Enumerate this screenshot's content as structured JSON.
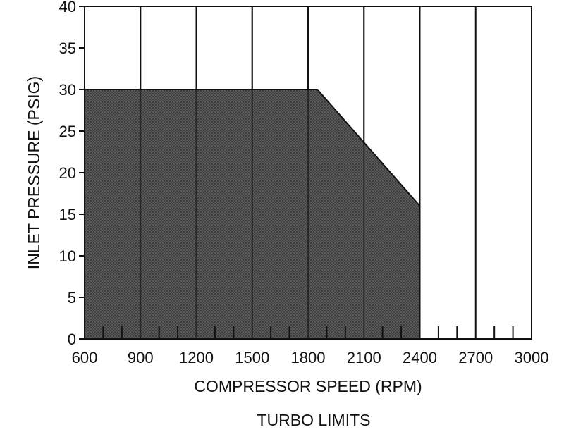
{
  "chart_data": {
    "type": "area",
    "title": "",
    "caption": "TURBO LIMITS",
    "xlabel": "COMPRESSOR SPEED (RPM)",
    "ylabel": "INLET PRESSURE (PSIG)",
    "xlim": [
      600,
      3000
    ],
    "ylim": [
      0,
      40
    ],
    "x_ticks": [
      "600",
      "900",
      "1200",
      "1500",
      "1800",
      "2100",
      "2400",
      "2700",
      "3000"
    ],
    "y_ticks": [
      "0",
      "5",
      "10",
      "15",
      "20",
      "25",
      "30",
      "35",
      "40"
    ],
    "grid": "vertical",
    "series": [
      {
        "x": [
          600,
          1850,
          2400,
          2400
        ],
        "y": [
          30,
          30,
          16,
          0
        ]
      }
    ],
    "fill_color": "#3a3a3a",
    "line_color": "#111111"
  }
}
